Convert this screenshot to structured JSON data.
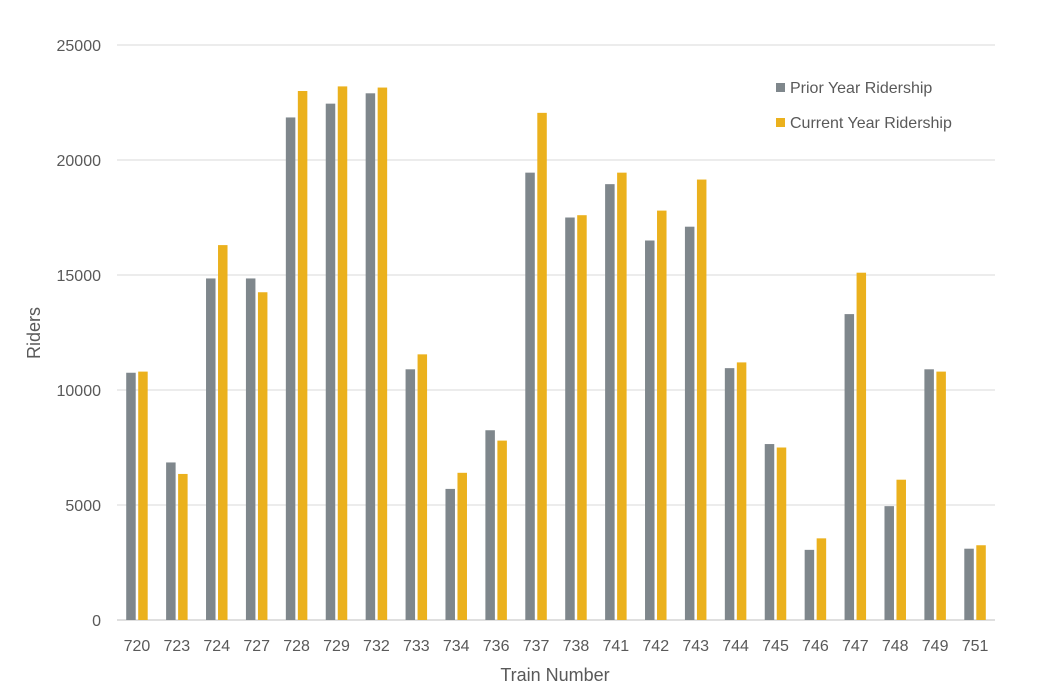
{
  "chart_data": {
    "type": "bar",
    "title": "",
    "xlabel": "Train Number",
    "ylabel": "Riders",
    "ylim": [
      0,
      25000
    ],
    "yticks": [
      0,
      5000,
      10000,
      15000,
      20000,
      25000
    ],
    "grid": true,
    "legend_position": "top-right",
    "categories": [
      "720",
      "723",
      "724",
      "727",
      "728",
      "729",
      "732",
      "733",
      "734",
      "736",
      "737",
      "738",
      "741",
      "742",
      "743",
      "744",
      "745",
      "746",
      "747",
      "748",
      "749",
      "751"
    ],
    "series": [
      {
        "name": "Prior Year Ridership",
        "color": "#7f878c",
        "values": [
          10750,
          6850,
          14850,
          14850,
          21850,
          22450,
          22900,
          10900,
          5700,
          8250,
          19450,
          17500,
          18950,
          16500,
          17100,
          10950,
          7650,
          3050,
          13300,
          4950,
          10900,
          3100
        ]
      },
      {
        "name": "Current Year Ridership",
        "color": "#ebb11d",
        "values": [
          10800,
          6350,
          16300,
          14250,
          23000,
          23200,
          23150,
          11550,
          6400,
          7800,
          22050,
          17600,
          19450,
          17800,
          19150,
          11200,
          7500,
          3550,
          15100,
          6100,
          10800,
          3250
        ]
      }
    ]
  }
}
